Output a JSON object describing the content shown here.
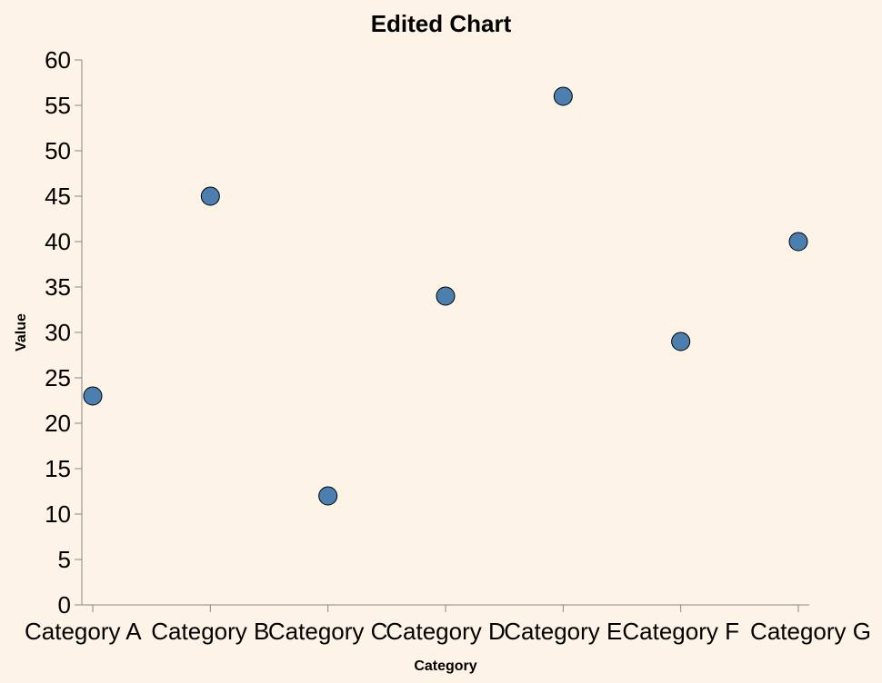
{
  "chart_data": {
    "type": "scatter",
    "title": "Edited Chart",
    "xlabel": "Category",
    "ylabel": "Value",
    "categories": [
      "Category A",
      "Category B",
      "Category C",
      "Category D",
      "Category E",
      "Category F",
      "Category G"
    ],
    "values": [
      23,
      45,
      12,
      34,
      56,
      29,
      40
    ],
    "ylim": [
      0,
      60
    ],
    "yticks": [
      0,
      5,
      10,
      15,
      20,
      25,
      30,
      35,
      40,
      45,
      50,
      55,
      60
    ],
    "grid": false,
    "legend": "none",
    "point_color": "#4a7fb0",
    "background_color": "#fdf3e6"
  }
}
